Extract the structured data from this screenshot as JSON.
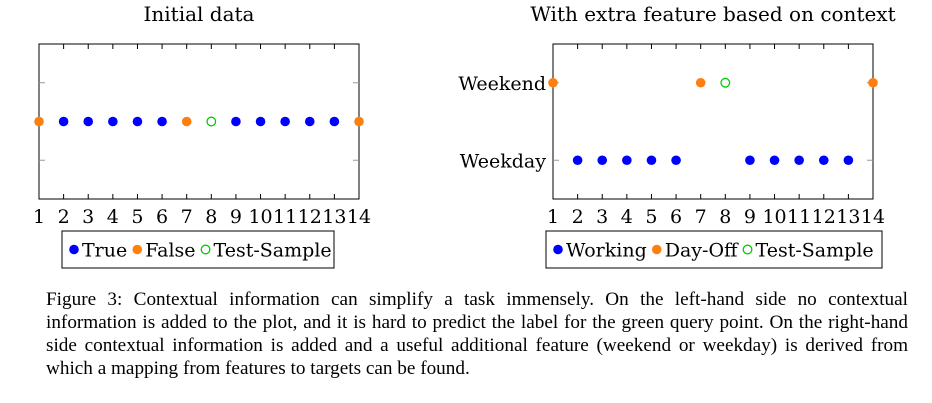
{
  "colors": {
    "true": "#0000ff",
    "false": "#ff7f0e",
    "test": "#00cc00",
    "axis": "#000000",
    "tick": "#999999"
  },
  "chart_data": [
    {
      "type": "scatter",
      "title": "Initial data",
      "xlim": [
        1,
        14
      ],
      "xticks": [
        "1",
        "2",
        "3",
        "4",
        "5",
        "6",
        "7",
        "8",
        "9",
        "10",
        "11",
        "12",
        "13",
        "14"
      ],
      "yticks": [],
      "series": [
        {
          "name": "True",
          "style": "filled",
          "color": "#0000ff",
          "points": [
            [
              2,
              0
            ],
            [
              3,
              0
            ],
            [
              4,
              0
            ],
            [
              5,
              0
            ],
            [
              6,
              0
            ],
            [
              9,
              0
            ],
            [
              10,
              0
            ],
            [
              11,
              0
            ],
            [
              12,
              0
            ],
            [
              13,
              0
            ]
          ]
        },
        {
          "name": "False",
          "style": "filled",
          "color": "#ff7f0e",
          "points": [
            [
              1,
              0
            ],
            [
              7,
              0
            ],
            [
              14,
              0
            ]
          ]
        },
        {
          "name": "Test-Sample",
          "style": "hollow",
          "color": "#00cc00",
          "points": [
            [
              8,
              0
            ]
          ]
        }
      ],
      "legend": "below"
    },
    {
      "type": "scatter",
      "title": "With extra feature based on context",
      "xlim": [
        1,
        14
      ],
      "xticks": [
        "1",
        "2",
        "3",
        "4",
        "5",
        "6",
        "7",
        "8",
        "9",
        "10",
        "11",
        "12",
        "13",
        "14"
      ],
      "yticks": [
        "Weekend",
        "Weekday"
      ],
      "series": [
        {
          "name": "Working",
          "style": "filled",
          "color": "#0000ff",
          "points": [
            [
              2,
              "Weekday"
            ],
            [
              3,
              "Weekday"
            ],
            [
              4,
              "Weekday"
            ],
            [
              5,
              "Weekday"
            ],
            [
              6,
              "Weekday"
            ],
            [
              9,
              "Weekday"
            ],
            [
              10,
              "Weekday"
            ],
            [
              11,
              "Weekday"
            ],
            [
              12,
              "Weekday"
            ],
            [
              13,
              "Weekday"
            ]
          ]
        },
        {
          "name": "Day-Off",
          "style": "filled",
          "color": "#ff7f0e",
          "points": [
            [
              1,
              "Weekend"
            ],
            [
              7,
              "Weekend"
            ],
            [
              14,
              "Weekend"
            ]
          ]
        },
        {
          "name": "Test-Sample",
          "style": "hollow",
          "color": "#00cc00",
          "points": [
            [
              8,
              "Weekend"
            ]
          ]
        }
      ],
      "legend": "below"
    }
  ],
  "caption": {
    "label": "Figure 3:",
    "text": "Contextual information can simplify a task immensely. On the left-hand side no contextual information is added to the plot, and it is hard to predict the label for the green query point. On the right-hand side contextual information is added and a useful additional feature (weekend or weekday) is derived from which a mapping from features to targets can be found."
  }
}
